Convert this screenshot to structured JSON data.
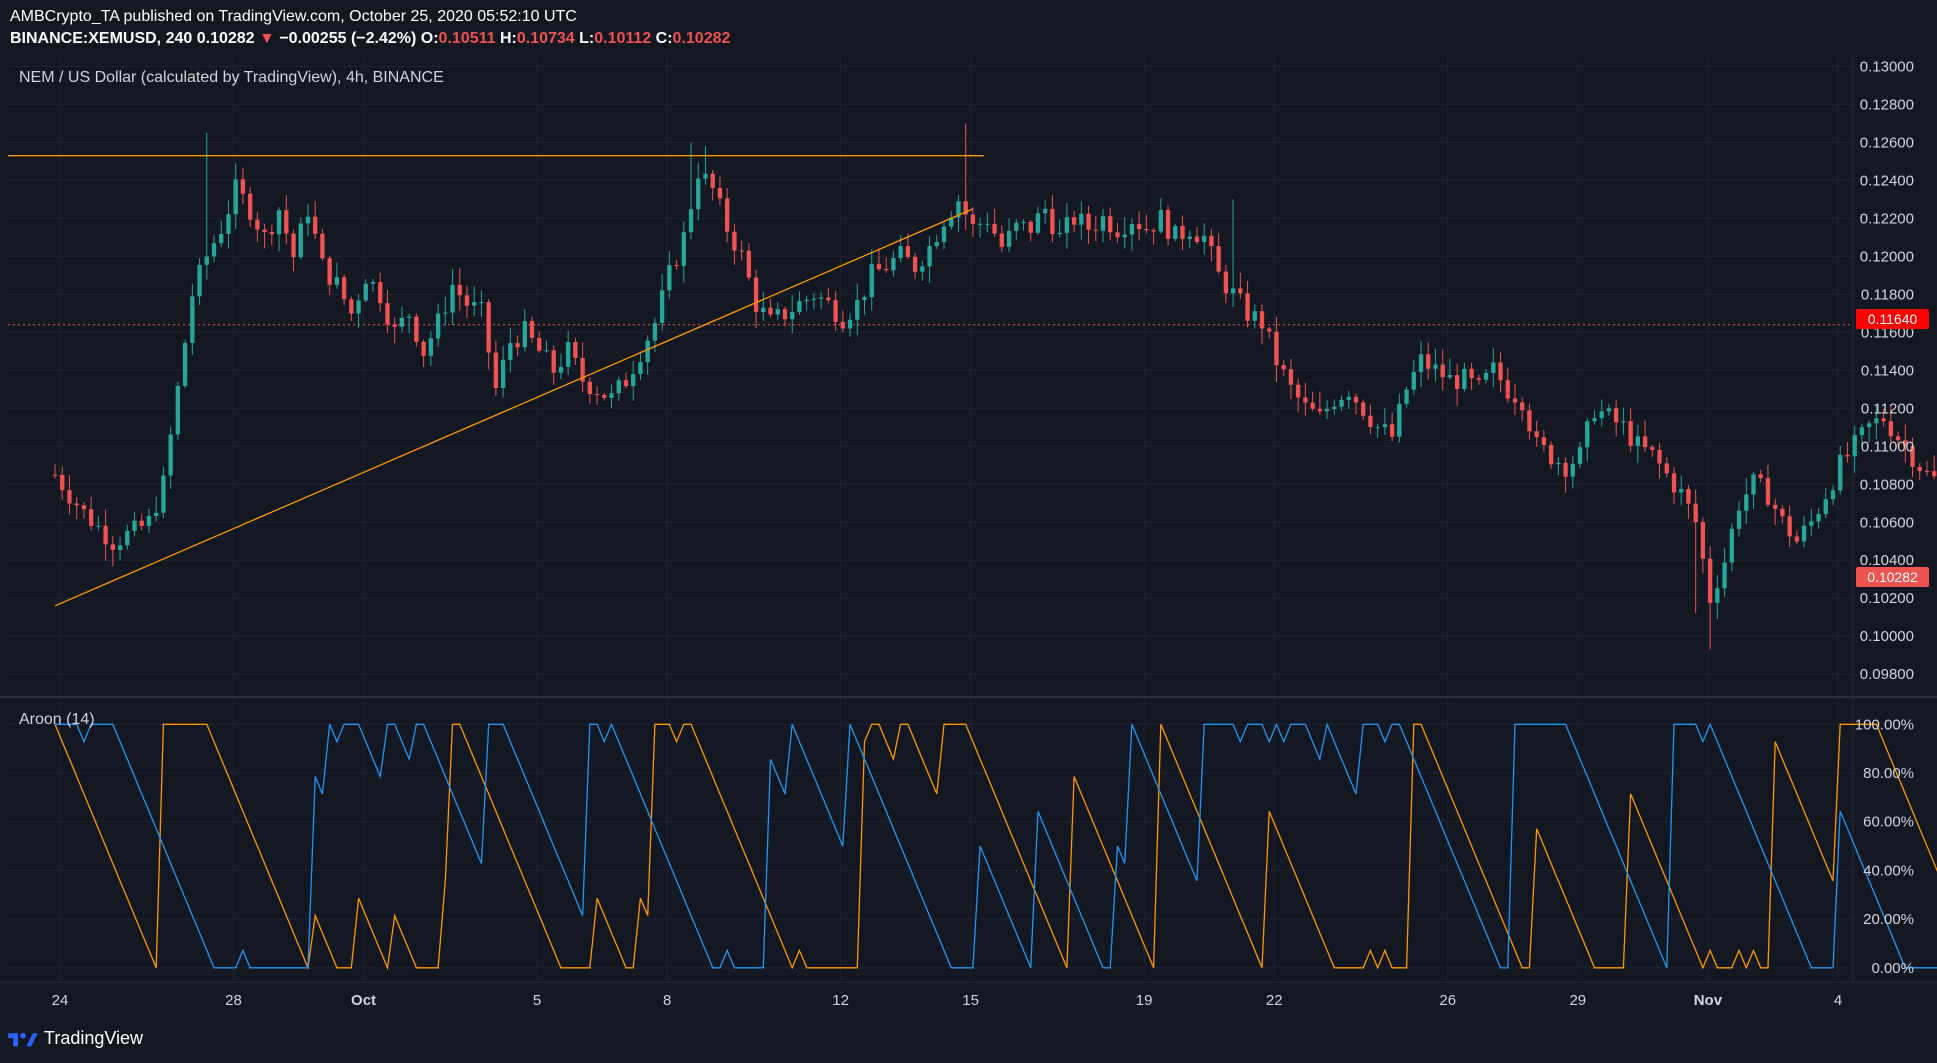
{
  "header": {
    "line1": "AMBCrypto_TA published on TradingView.com, October 25, 2020 05:52:10 UTC",
    "symbol": "BINANCE:XEMUSD, 240",
    "last": "0.10282",
    "arrow": "▼",
    "change": "−0.00255 (−2.42%)",
    "o_label": "O:",
    "o": "0.10511",
    "h_label": "H:",
    "h": "0.10734",
    "l_label": "L:",
    "l": "0.10112",
    "c_label": "C:",
    "c": "0.10282"
  },
  "footer": {
    "brand": "TradingView",
    "logo_icon": "tradingview-logo-icon"
  },
  "colors": {
    "background": "#131722",
    "up": "#26a69a",
    "down": "#ef5350",
    "trendline": "#ff9800",
    "aroon_up": "#ff9800",
    "aroon_down": "#2196f3",
    "grid": "#1f2331",
    "text": "#d1d4dc",
    "level_line": "#ef5350"
  },
  "chart_data": [
    {
      "type": "candlestick",
      "title": "NEM / US Dollar (calculated by TradingView), 4h, BINANCE",
      "yticks": [
        "0.13000",
        "0.12800",
        "0.12600",
        "0.12400",
        "0.12200",
        "0.12000",
        "0.11800",
        "0.11600",
        "0.11400",
        "0.11200",
        "0.11000",
        "0.10800",
        "0.10600",
        "0.10400",
        "0.10200",
        "0.10000",
        "0.09800"
      ],
      "ylim": [
        0.0968,
        0.1306
      ],
      "xticks": [
        "24",
        "28",
        "Oct",
        "5",
        "8",
        "12",
        "15",
        "19",
        "22",
        "26",
        "29",
        "Nov",
        "4"
      ],
      "xtick_day_index": [
        0,
        4,
        7,
        11,
        14,
        18,
        21,
        25,
        28,
        32,
        35,
        38,
        41
      ],
      "x_start": "2020-09-23 00:00",
      "bar_hours": 4,
      "price_labels": {
        "level": "0.11640",
        "last": "0.10282"
      },
      "horizontal_resistance": 0.1253,
      "horizontal_support_dotted": 0.1164,
      "trendline": {
        "from": [
          0,
          0.1016
        ],
        "to": [
          127,
          0.1225
        ]
      },
      "candles": []
    },
    {
      "type": "line",
      "title": "Aroon (14)",
      "yticks": [
        "100.00%",
        "80.00%",
        "60.00%",
        "40.00%",
        "20.00%",
        "0.00%"
      ],
      "ylim": [
        -5,
        110
      ],
      "series": [
        {
          "values": []
        },
        {
          "values": []
        }
      ]
    }
  ]
}
